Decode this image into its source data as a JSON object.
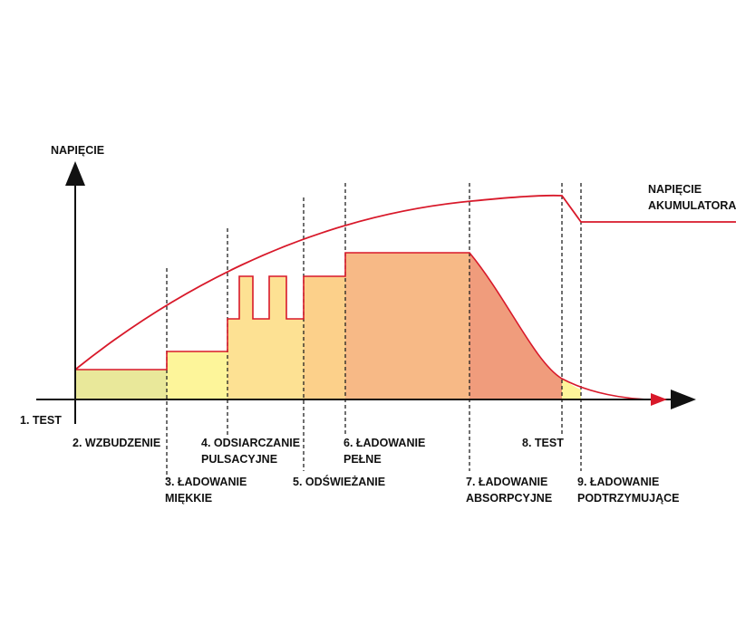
{
  "y_axis_label": "NAPIĘCIE",
  "battery_voltage_label": [
    "NAPIĘCIE",
    "AKUMULATORA"
  ],
  "stages": [
    {
      "id": "test",
      "lines": [
        "1. TEST"
      ]
    },
    {
      "id": "wzbudzenie",
      "lines": [
        "2. WZBUDZENIE"
      ]
    },
    {
      "id": "ladowanie-miekkie",
      "lines": [
        "3. ŁADOWANIE",
        "MIĘKKIE"
      ]
    },
    {
      "id": "odsiarczanie",
      "lines": [
        "4. ODSIARCZANIE",
        "PULSACYJNE"
      ]
    },
    {
      "id": "odswiezanie",
      "lines": [
        "5. ODŚWIEŻANIE"
      ]
    },
    {
      "id": "ladowanie-pelne",
      "lines": [
        "6. ŁADOWANIE",
        "PEŁNE"
      ]
    },
    {
      "id": "ladowanie-absorpcyjne",
      "lines": [
        "7. ŁADOWANIE",
        "ABSORPCYJNE"
      ]
    },
    {
      "id": "test-2",
      "lines": [
        "8. TEST"
      ]
    },
    {
      "id": "ladowanie-podtrzymujace",
      "lines": [
        "9. ŁADOWANIE",
        "PODTRZYMUJĄCE"
      ]
    }
  ],
  "colors": {
    "curve": "#d8192a",
    "axis": "#111111",
    "divider": "#222222",
    "stage_2": "#e9e89a",
    "stage_3": "#fdf59a",
    "stage_4": "#fde193",
    "stage_5": "#fcd08a",
    "stage_6": "#f7b986",
    "stage_7": "#f09c7c",
    "stage_8": "#fdf59a"
  }
}
